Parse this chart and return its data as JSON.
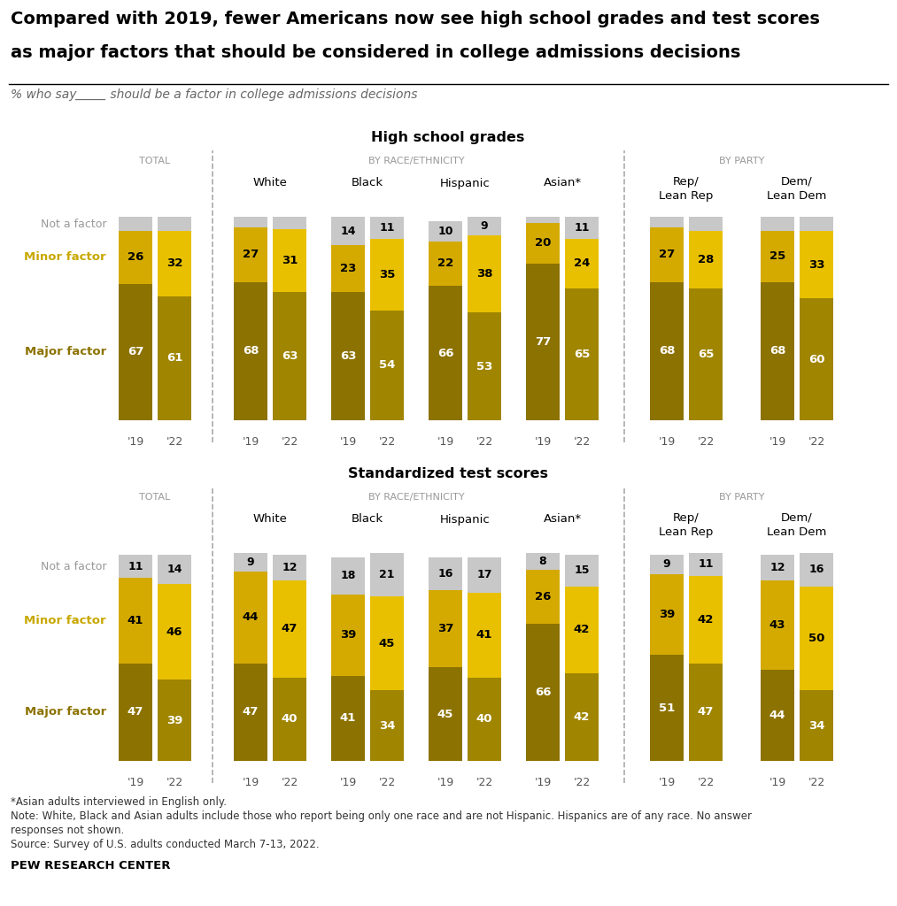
{
  "title_line1": "Compared with 2019, fewer Americans now see high school grades and test scores",
  "title_line2": "as major factors that should be considered in college admissions decisions",
  "subtitle": "% who say _____ should be a factor in college admissions decisions",
  "section1_title": "High school grades",
  "section2_title": "Standardized test scores",
  "footnote_line1": "*Asian adults interviewed in English only.",
  "footnote_line2": "Note: White, Black and Asian adults include those who report being only one race and are not Hispanic. Hispanics are of any race. No answer",
  "footnote_line3": "responses not shown.",
  "footnote_line4": "Source: Survey of U.S. adults conducted March 7-13, 2022.",
  "source_bold": "PEW RESEARCH CENTER",
  "colors": {
    "major_19": "#8b7200",
    "major_22": "#b09a00",
    "minor_19": "#c8a800",
    "minor_22": "#e6c800",
    "not_factor": "#cccccc"
  },
  "group_labels": [
    "TOTAL",
    "White",
    "Black",
    "Hispanic",
    "Asian*",
    "Rep/\nLean Rep",
    "Dem/\nLean Dem"
  ],
  "section_labels": [
    "TOTAL",
    "BY RACE/ETHNICITY",
    "BY PARTY"
  ],
  "hs_grades": {
    "major_19": [
      67,
      68,
      63,
      66,
      77,
      68,
      68
    ],
    "major_22": [
      61,
      63,
      54,
      53,
      65,
      65,
      60
    ],
    "minor_19": [
      26,
      27,
      23,
      22,
      20,
      27,
      25
    ],
    "minor_22": [
      32,
      31,
      35,
      38,
      24,
      28,
      33
    ],
    "not_19": [
      7,
      5,
      14,
      10,
      3,
      5,
      7
    ],
    "not_22": [
      7,
      6,
      11,
      9,
      11,
      7,
      7
    ]
  },
  "test_scores": {
    "major_19": [
      47,
      47,
      41,
      45,
      66,
      51,
      44
    ],
    "major_22": [
      39,
      40,
      34,
      40,
      42,
      47,
      34
    ],
    "minor_19": [
      41,
      44,
      39,
      37,
      26,
      39,
      43
    ],
    "minor_22": [
      46,
      47,
      45,
      41,
      42,
      42,
      50
    ],
    "not_19": [
      11,
      9,
      18,
      16,
      8,
      9,
      12
    ],
    "not_22": [
      14,
      12,
      21,
      17,
      15,
      11,
      16
    ]
  },
  "label_not_factor": "Not a factor",
  "label_minor": "Minor factor",
  "label_major": "Major factor"
}
